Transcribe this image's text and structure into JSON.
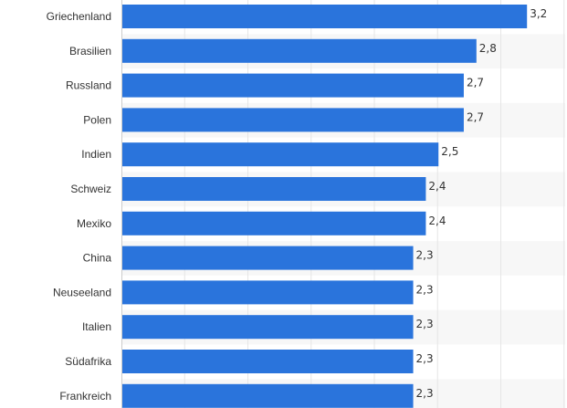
{
  "chart_data": {
    "type": "bar",
    "orientation": "horizontal",
    "categories": [
      "Griechenland",
      "Brasilien",
      "Russland",
      "Polen",
      "Indien",
      "Schweiz",
      "Mexiko",
      "China",
      "Neuseeland",
      "Italien",
      "Südafrika",
      "Frankreich"
    ],
    "values": [
      3.2,
      2.8,
      2.7,
      2.7,
      2.5,
      2.4,
      2.4,
      2.3,
      2.3,
      2.3,
      2.3,
      2.3
    ],
    "value_labels": [
      "3,2",
      "2,8",
      "2,7",
      "2,7",
      "2,5",
      "2,4",
      "2,4",
      "2,3",
      "2,3",
      "2,3",
      "2,3",
      "2,3"
    ],
    "xlim": [
      0,
      3.5
    ],
    "grid": true,
    "bar_color": "#2a74dc",
    "stripe_color": "#f7f7f7"
  }
}
